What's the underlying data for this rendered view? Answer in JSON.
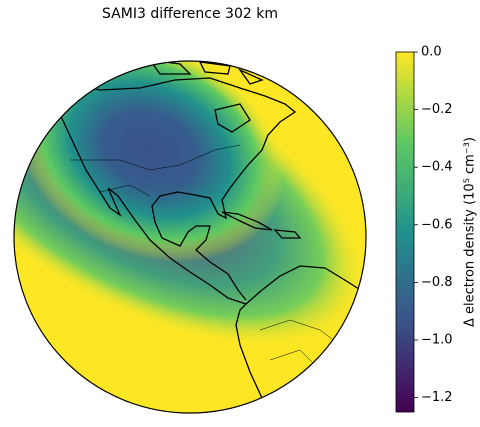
{
  "title": "SAMI3 difference 302 km",
  "colorbar": {
    "label": "Δ electron density (10⁵ cm⁻³)",
    "lim": [
      -1.25,
      0
    ],
    "colors": [
      "#440154",
      "#3b528b",
      "#21918c",
      "#5ec962",
      "#fde725"
    ],
    "ticks": [
      {
        "value": 0,
        "label": "0.0"
      },
      {
        "value": -0.2,
        "label": "−0.2"
      },
      {
        "value": -0.4,
        "label": "−0.4"
      },
      {
        "value": -0.6,
        "label": "−0.6"
      },
      {
        "value": -0.8,
        "label": "−0.8"
      },
      {
        "value": -1.0,
        "label": "−1.0"
      },
      {
        "value": -1.2,
        "label": "−1.2"
      }
    ]
  }
}
